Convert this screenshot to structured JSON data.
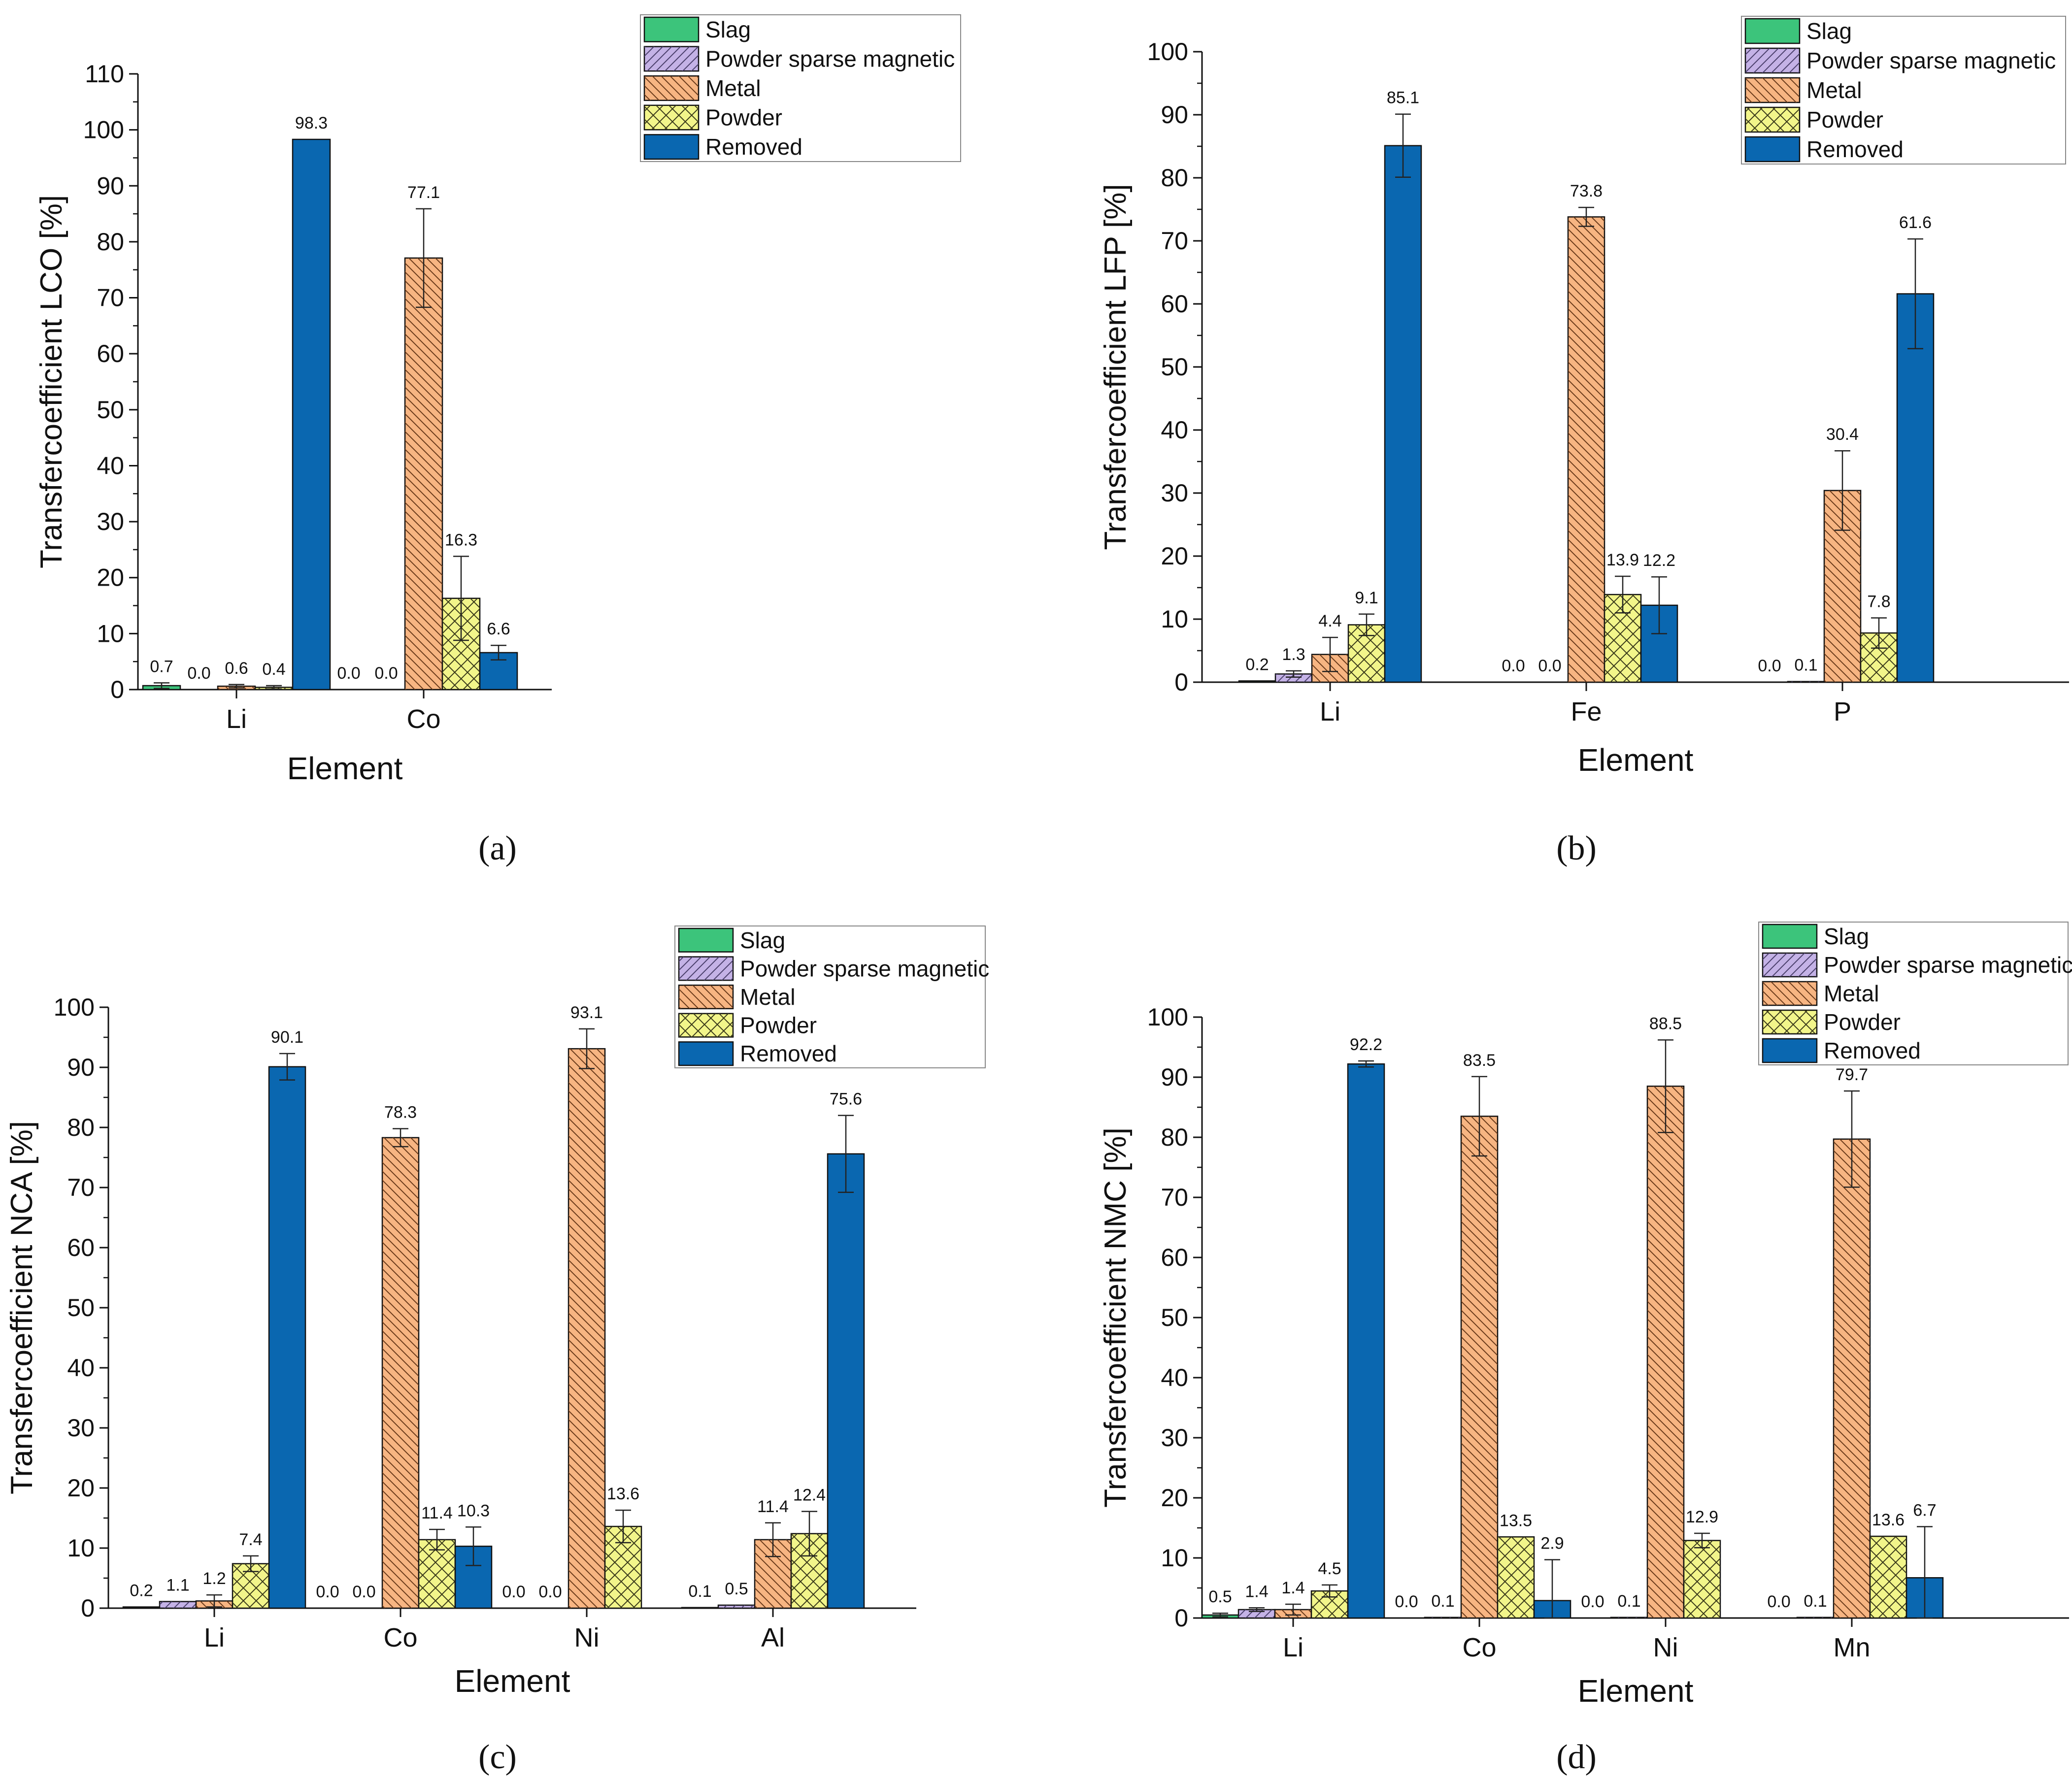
{
  "figure": {
    "panel_labels": [
      "(a)",
      "(b)",
      "(c)",
      "(d)"
    ]
  },
  "legend": [
    "Slag",
    "Powder sparse magnetic",
    "Metal",
    "Powder",
    "Removed"
  ],
  "series_styles": [
    {
      "name": "Slag",
      "fill": "#3cc47b",
      "pattern": "none"
    },
    {
      "name": "Powder sparse magnetic",
      "fill": "#c4b2e6",
      "pattern": "diag-right"
    },
    {
      "name": "Metal",
      "fill": "#f7b582",
      "pattern": "diag-left"
    },
    {
      "name": "Powder",
      "fill": "#f2f58a",
      "pattern": "cross"
    },
    {
      "name": "Removed",
      "fill": "#0a67b0",
      "pattern": "none"
    }
  ],
  "chart_data": [
    {
      "type": "bar",
      "panel": "(a)",
      "xlabel": "Element",
      "ylabel": "Transfercoefficient LCO [%]",
      "categories": [
        "Li",
        "Co"
      ],
      "ylim": [
        0,
        110
      ],
      "yticks": [
        0,
        10,
        20,
        30,
        40,
        50,
        60,
        70,
        80,
        90,
        100,
        110
      ],
      "legend_position": "top-right",
      "series": [
        {
          "name": "Slag",
          "values": [
            0.7,
            0.0
          ],
          "errors": [
            0.5,
            0
          ]
        },
        {
          "name": "Powder sparse magnetic",
          "values": [
            0.0,
            0.0
          ],
          "errors": [
            0,
            0
          ]
        },
        {
          "name": "Metal",
          "values": [
            0.6,
            77.1
          ],
          "errors": [
            0.3,
            8.8
          ]
        },
        {
          "name": "Powder",
          "values": [
            0.4,
            16.3
          ],
          "errors": [
            0.3,
            7.5
          ]
        },
        {
          "name": "Removed",
          "values": [
            98.3,
            6.6
          ],
          "errors": [
            0,
            1.3
          ]
        }
      ],
      "value_labels": [
        [
          "0.7",
          "0.0",
          "0.6",
          "0.4",
          "98.3"
        ],
        [
          "0.0",
          "0.0",
          "77.1",
          "16.3",
          "6.6"
        ]
      ]
    },
    {
      "type": "bar",
      "panel": "(b)",
      "xlabel": "Element",
      "ylabel": "Transfercoefficient LFP [%]",
      "categories": [
        "Li",
        "Fe",
        "P"
      ],
      "ylim": [
        0,
        100
      ],
      "yticks": [
        0,
        10,
        20,
        30,
        40,
        50,
        60,
        70,
        80,
        90,
        100
      ],
      "legend_position": "top-right",
      "series": [
        {
          "name": "Slag",
          "values": [
            0.2,
            0.0,
            0.0
          ],
          "errors": [
            0,
            0,
            0
          ]
        },
        {
          "name": "Powder sparse magnetic",
          "values": [
            1.3,
            0.0,
            0.1
          ],
          "errors": [
            0.5,
            0,
            0
          ]
        },
        {
          "name": "Metal",
          "values": [
            4.4,
            73.8,
            30.4
          ],
          "errors": [
            2.7,
            1.5,
            6.3
          ]
        },
        {
          "name": "Powder",
          "values": [
            9.1,
            13.9,
            7.8
          ],
          "errors": [
            1.7,
            2.9,
            2.4
          ]
        },
        {
          "name": "Removed",
          "values": [
            85.1,
            12.2,
            61.6
          ],
          "errors": [
            5.0,
            4.5,
            8.7
          ]
        }
      ],
      "value_labels": [
        [
          "0.2",
          "1.3",
          "4.4",
          "9.1",
          "85.1"
        ],
        [
          "0.0",
          "0.0",
          "73.8",
          "13.9",
          "12.2"
        ],
        [
          "0.0",
          "0.1",
          "30.4",
          "7.8",
          "61.6"
        ]
      ]
    },
    {
      "type": "bar",
      "panel": "(c)",
      "xlabel": "Element",
      "ylabel": "Transfercoefficient NCA [%]",
      "categories": [
        "Li",
        "Co",
        "Ni",
        "Al"
      ],
      "ylim": [
        0,
        100
      ],
      "yticks": [
        0,
        10,
        20,
        30,
        40,
        50,
        60,
        70,
        80,
        90,
        100
      ],
      "legend_position": "top-right",
      "series": [
        {
          "name": "Slag",
          "values": [
            0.2,
            0.0,
            0.0,
            0.1
          ],
          "errors": [
            0,
            0,
            0,
            0
          ]
        },
        {
          "name": "Powder sparse magnetic",
          "values": [
            1.1,
            0.0,
            0.0,
            0.5
          ],
          "errors": [
            0,
            0,
            0,
            0
          ]
        },
        {
          "name": "Metal",
          "values": [
            1.2,
            78.3,
            93.1,
            11.4
          ],
          "errors": [
            1.0,
            1.5,
            3.3,
            2.8
          ]
        },
        {
          "name": "Powder",
          "values": [
            7.4,
            11.4,
            13.6,
            12.4
          ],
          "errors": [
            1.3,
            1.7,
            2.7,
            3.7
          ]
        },
        {
          "name": "Removed",
          "values": [
            90.1,
            10.3,
            0,
            75.6
          ],
          "errors": [
            2.2,
            3.2,
            0,
            6.4
          ]
        }
      ],
      "value_labels": [
        [
          "0.2",
          "1.1",
          "1.2",
          "7.4",
          "90.1"
        ],
        [
          "0.0",
          "0.0",
          "78.3",
          "11.4",
          "10.3"
        ],
        [
          "0.0",
          "0.0",
          "93.1",
          "13.6",
          ""
        ],
        [
          "0.1",
          "0.5",
          "11.4",
          "12.4",
          "75.6"
        ]
      ]
    },
    {
      "type": "bar",
      "panel": "(d)",
      "xlabel": "Element",
      "ylabel": "Transfercoefficient NMC [%]",
      "categories": [
        "Li",
        "Co",
        "Ni",
        "Mn"
      ],
      "ylim": [
        0,
        100
      ],
      "yticks": [
        0,
        10,
        20,
        30,
        40,
        50,
        60,
        70,
        80,
        90,
        100
      ],
      "legend_position": "top-right",
      "series": [
        {
          "name": "Slag",
          "values": [
            0.5,
            0.0,
            0.0,
            0.0
          ],
          "errors": [
            0.3,
            0,
            0,
            0
          ]
        },
        {
          "name": "Powder sparse magnetic",
          "values": [
            1.4,
            0.1,
            0.1,
            0.1
          ],
          "errors": [
            0.3,
            0,
            0,
            0
          ]
        },
        {
          "name": "Metal",
          "values": [
            1.4,
            83.5,
            88.5,
            79.7
          ],
          "errors": [
            0.9,
            6.6,
            7.7,
            8.0
          ]
        },
        {
          "name": "Powder",
          "values": [
            4.5,
            13.5,
            12.9,
            13.6
          ],
          "errors": [
            1.0,
            0,
            1.2,
            0
          ]
        },
        {
          "name": "Removed",
          "values": [
            92.2,
            2.9,
            0,
            6.7
          ],
          "errors": [
            0.5,
            6.8,
            0,
            8.5
          ]
        }
      ],
      "value_labels": [
        [
          "0.5",
          "1.4",
          "1.4",
          "4.5",
          "92.2"
        ],
        [
          "0.0",
          "0.1",
          "83.5",
          "13.5",
          "2.9"
        ],
        [
          "0.0",
          "0.1",
          "88.5",
          "12.9",
          ""
        ],
        [
          "0.0",
          "0.1",
          "79.7",
          "13.6",
          "6.7"
        ]
      ]
    }
  ]
}
